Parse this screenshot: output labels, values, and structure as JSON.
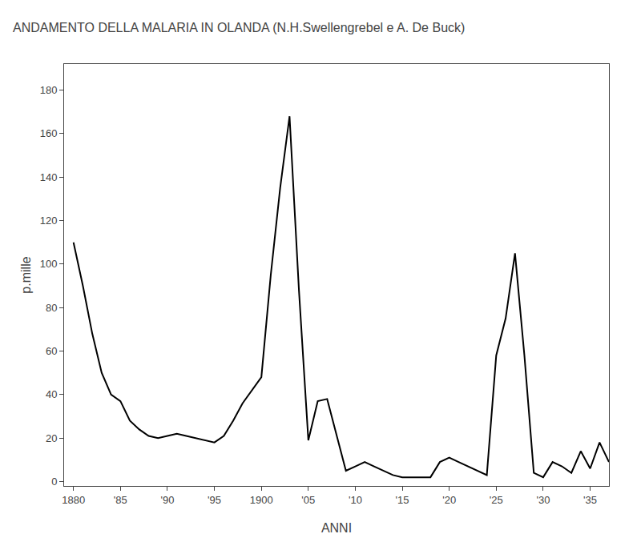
{
  "chart_data": {
    "type": "line",
    "title": "ANDAMENTO DELLA MALARIA IN OLANDA (N.H.Swellengrebel e A. De Buck)",
    "xlabel": "ANNI",
    "ylabel": "p.mille",
    "color": "#000000",
    "x": [
      1880,
      1881,
      1882,
      1883,
      1884,
      1885,
      1886,
      1887,
      1888,
      1889,
      1890,
      1891,
      1892,
      1893,
      1894,
      1895,
      1896,
      1897,
      1898,
      1899,
      1900,
      1901,
      1902,
      1903,
      1904,
      1905,
      1906,
      1907,
      1908,
      1909,
      1910,
      1911,
      1912,
      1913,
      1914,
      1915,
      1916,
      1917,
      1918,
      1919,
      1920,
      1921,
      1922,
      1923,
      1924,
      1925,
      1926,
      1927,
      1928,
      1929,
      1930,
      1931,
      1932,
      1933,
      1934,
      1935,
      1936,
      1937
    ],
    "values": [
      110,
      90,
      68,
      50,
      40,
      37,
      28,
      24,
      21,
      20,
      21,
      22,
      21,
      20,
      19,
      18,
      21,
      28,
      36,
      42,
      48,
      95,
      135,
      168,
      88,
      19,
      37,
      38,
      22,
      5,
      7,
      9,
      7,
      5,
      3,
      2,
      2,
      2,
      2,
      9,
      11,
      9,
      7,
      5,
      3,
      58,
      75,
      105,
      58,
      4,
      2,
      9,
      7,
      4,
      14,
      6,
      18,
      9
    ],
    "xlim": [
      1879,
      1937
    ],
    "ylim": [
      -2,
      192
    ],
    "xticks": [
      1880,
      {
        "value": 1885,
        "label": "'85"
      },
      {
        "value": 1890,
        "label": "'90"
      },
      {
        "value": 1895,
        "label": "'95"
      },
      1900,
      {
        "value": 1905,
        "label": "'05"
      },
      {
        "value": 1910,
        "label": "'10"
      },
      {
        "value": 1915,
        "label": "'15"
      },
      {
        "value": 1920,
        "label": "'20"
      },
      {
        "value": 1925,
        "label": "'25"
      },
      {
        "value": 1930,
        "label": "'30"
      },
      {
        "value": 1935,
        "label": "'35"
      }
    ],
    "yticks": [
      0,
      20,
      40,
      60,
      80,
      100,
      120,
      140,
      160,
      180
    ],
    "grid": false
  }
}
